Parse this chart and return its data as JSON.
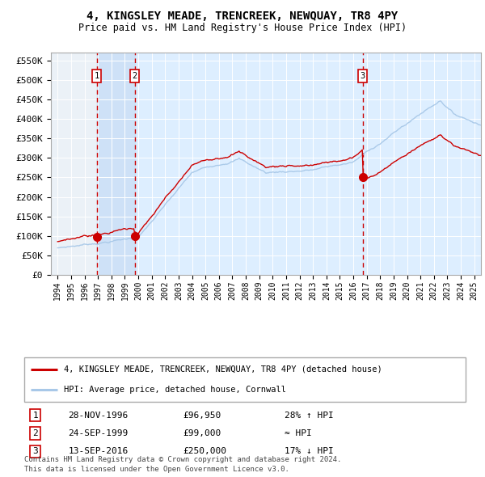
{
  "title": "4, KINGSLEY MEADE, TRENCREEK, NEWQUAY, TR8 4PY",
  "subtitle": "Price paid vs. HM Land Registry's House Price Index (HPI)",
  "transactions": [
    {
      "num": 1,
      "date": "28-NOV-1996",
      "date_float": 1996.91,
      "price": 96950,
      "label": "28% ↑ HPI"
    },
    {
      "num": 2,
      "date": "24-SEP-1999",
      "date_float": 1999.73,
      "price": 99000,
      "label": "≈ HPI"
    },
    {
      "num": 3,
      "date": "13-SEP-2016",
      "date_float": 2016.7,
      "price": 250000,
      "label": "17% ↓ HPI"
    }
  ],
  "legend_property": "4, KINGSLEY MEADE, TRENCREEK, NEWQUAY, TR8 4PY (detached house)",
  "legend_hpi": "HPI: Average price, detached house, Cornwall",
  "footnote1": "Contains HM Land Registry data © Crown copyright and database right 2024.",
  "footnote2": "This data is licensed under the Open Government Licence v3.0.",
  "ylim": [
    0,
    570000
  ],
  "xlim": [
    1993.5,
    2025.5
  ],
  "yticks": [
    0,
    50000,
    100000,
    150000,
    200000,
    250000,
    300000,
    350000,
    400000,
    450000,
    500000,
    550000
  ],
  "ytick_labels": [
    "£0",
    "£50K",
    "£100K",
    "£150K",
    "£200K",
    "£250K",
    "£300K",
    "£350K",
    "£400K",
    "£450K",
    "£500K",
    "£550K"
  ],
  "xticks": [
    1994,
    1995,
    1996,
    1997,
    1998,
    1999,
    2000,
    2001,
    2002,
    2003,
    2004,
    2005,
    2006,
    2007,
    2008,
    2009,
    2010,
    2011,
    2012,
    2013,
    2014,
    2015,
    2016,
    2017,
    2018,
    2019,
    2020,
    2021,
    2022,
    2023,
    2024,
    2025
  ],
  "hpi_color": "#a8c8e8",
  "price_color": "#cc0000",
  "bg_main": "#ddeeff",
  "bg_ownership1": "#c8dcf4",
  "grid_color": "#ffffff",
  "hatch_bg": "#e0e8f0"
}
